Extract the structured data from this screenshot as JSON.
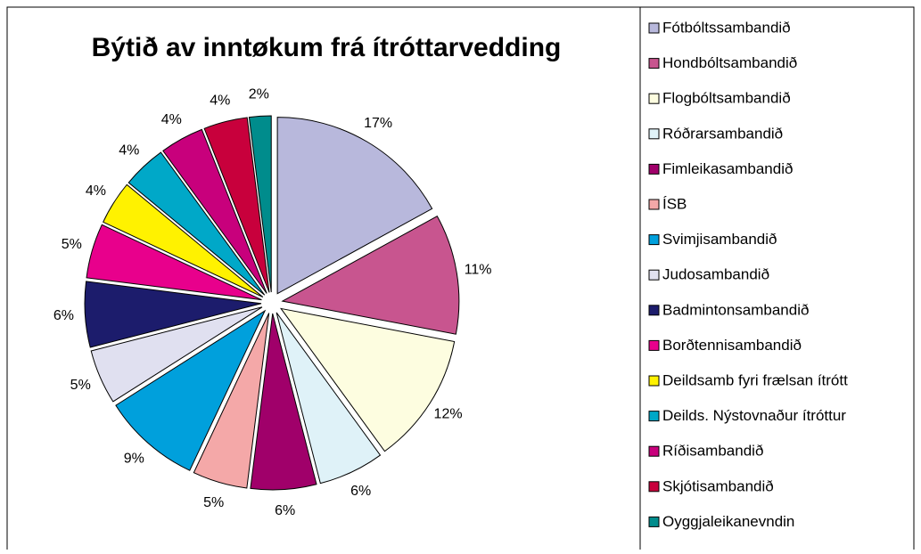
{
  "chart_data": {
    "type": "pie",
    "title": "Býtið av inntøkum frá ítróttarvedding",
    "categories": [
      "Fótbóltssambandið",
      "Hondbóltsambandið",
      "Flogbóltsambandið",
      "Róðrarsambandið",
      "Fimleikasambandið",
      "ÍSB",
      "Svimjisambandið",
      "Judosambandið",
      "Badmintonsambandið",
      "Borðtennisambandið",
      "Deildsamb fyri frælsan ítrótt",
      "Deilds. Nýstovnaður ítróttur",
      "Ríðisambandið",
      "Skjótisambandið",
      "Oyggjaleikanevndin"
    ],
    "values": [
      17,
      11,
      12,
      6,
      6,
      5,
      9,
      5,
      6,
      5,
      4,
      4,
      4,
      4,
      2
    ],
    "value_labels": [
      "17%",
      "11%",
      "12%",
      "6%",
      "6%",
      "5%",
      "9%",
      "5%",
      "6%",
      "5%",
      "4%",
      "4%",
      "4%",
      "4%",
      "2%"
    ],
    "colors": [
      "#b8b8dc",
      "#c8558f",
      "#fdfde0",
      "#dff2f8",
      "#a0006a",
      "#f4a8a8",
      "#00a0dc",
      "#e0e0f0",
      "#1c1c6c",
      "#e8008c",
      "#fff200",
      "#00a8c8",
      "#c8007c",
      "#c8003c",
      "#008c8c"
    ]
  }
}
